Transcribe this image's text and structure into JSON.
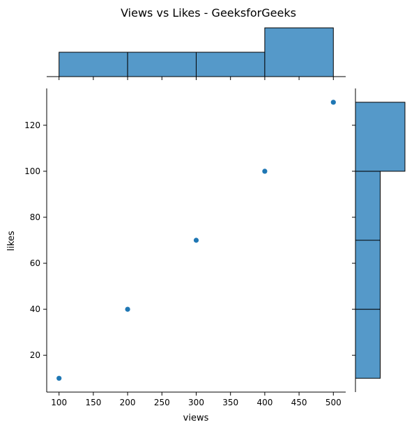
{
  "chart_data": {
    "type": "scatter",
    "title": "Views vs Likes - GeeksforGeeks",
    "xlabel": "views",
    "ylabel": "likes",
    "x": [
      100,
      200,
      300,
      400,
      500
    ],
    "y": [
      10,
      40,
      70,
      100,
      130
    ],
    "xlim": [
      82,
      518
    ],
    "ylim": [
      4,
      136
    ],
    "xticks": [
      100,
      150,
      200,
      250,
      300,
      350,
      400,
      450,
      500
    ],
    "yticks": [
      20,
      40,
      60,
      80,
      100,
      120
    ],
    "marginal_x": {
      "bins": [
        [
          100,
          200
        ],
        [
          200,
          300
        ],
        [
          300,
          400
        ],
        [
          400,
          500
        ]
      ],
      "counts": [
        1,
        1,
        1,
        2
      ]
    },
    "marginal_y": {
      "bins": [
        [
          10,
          40
        ],
        [
          40,
          70
        ],
        [
          70,
          100
        ],
        [
          100,
          130
        ]
      ],
      "counts": [
        1,
        1,
        1,
        2
      ]
    },
    "colors": {
      "fill": "#5599c9",
      "point": "#1f77b4",
      "edge": "#000000"
    },
    "grid": false,
    "legend": "none"
  }
}
